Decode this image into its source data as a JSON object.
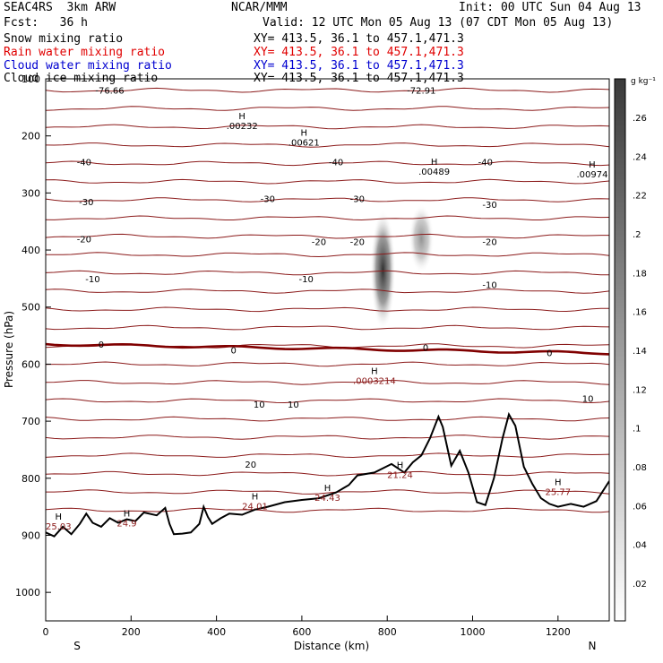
{
  "header": {
    "model": "SEAC4RS  3km ARW",
    "org": "NCAR/MMM",
    "init": "Init: 00 UTC Sun 04 Aug 13",
    "fcst": "Fcst:   36 h",
    "valid": "Valid: 12 UTC Mon 05 Aug 13 (07 CDT Mon 05 Aug 13)",
    "fields": [
      {
        "label": "Snow mixing ratio",
        "xy": "XY= 413.5, 36.1 to 457.1,471.3",
        "color": "#000000"
      },
      {
        "label": "Rain water mixing ratio",
        "xy": "XY= 413.5, 36.1 to 457.1,471.3",
        "color": "#e00000"
      },
      {
        "label": "Cloud water mixing ratio",
        "xy": "XY= 413.5, 36.1 to 457.1,471.3",
        "color": "#0000d0"
      },
      {
        "label": "Cloud ice mixing ratio",
        "xy": "XY= 413.5, 36.1 to 457.1,471.3",
        "color": "#000000"
      }
    ]
  },
  "colors": {
    "temperature": "#8b1a1a",
    "terrain": "#000000",
    "zero_line": "#800000"
  },
  "chart_data": {
    "type": "contour cross-section",
    "xlabel": "Distance (km)",
    "ylabel": "Pressure (hPa)",
    "xlim": [
      0,
      1320
    ],
    "ylim": [
      1050,
      100
    ],
    "x_ticks": [
      "0",
      "200",
      "400",
      "600",
      "800",
      "1000",
      "1200"
    ],
    "y_ticks": [
      "100",
      "200",
      "300",
      "400",
      "500",
      "600",
      "700",
      "800",
      "900",
      "1000"
    ],
    "direction_labels": [
      "S",
      "N"
    ],
    "colorbar": {
      "unit": "g kg⁻¹",
      "ticks": [
        ".02",
        ".04",
        ".06",
        ".08",
        ".1",
        ".12",
        ".14",
        ".16",
        ".18",
        ".2",
        ".22",
        ".24",
        ".26"
      ]
    },
    "isotherms": [
      {
        "label": "-76.66",
        "x": 150,
        "p": 120
      },
      {
        "label": "-72.91",
        "x": 880,
        "p": 120
      },
      {
        "label": "-40",
        "x": 90,
        "p": 245
      },
      {
        "label": "-40",
        "x": 680,
        "p": 245
      },
      {
        "label": "-40",
        "x": 1030,
        "p": 245
      },
      {
        "label": "-30",
        "x": 95,
        "p": 315
      },
      {
        "label": "-30",
        "x": 520,
        "p": 310
      },
      {
        "label": "-30",
        "x": 730,
        "p": 310
      },
      {
        "label": "-30",
        "x": 1040,
        "p": 320
      },
      {
        "label": "-20",
        "x": 90,
        "p": 380
      },
      {
        "label": "-20",
        "x": 640,
        "p": 385
      },
      {
        "label": "-20",
        "x": 730,
        "p": 385
      },
      {
        "label": "-20",
        "x": 1040,
        "p": 385
      },
      {
        "label": "-10",
        "x": 110,
        "p": 450
      },
      {
        "label": "-10",
        "x": 610,
        "p": 450
      },
      {
        "label": "-10",
        "x": 1040,
        "p": 460
      },
      {
        "label": "0",
        "x": 130,
        "p": 565
      },
      {
        "label": "0",
        "x": 440,
        "p": 575
      },
      {
        "label": "0",
        "x": 890,
        "p": 570
      },
      {
        "label": "0",
        "x": 1180,
        "p": 580
      },
      {
        "label": "10",
        "x": 500,
        "p": 670
      },
      {
        "label": "10",
        "x": 580,
        "p": 670
      },
      {
        "label": "10",
        "x": 1270,
        "p": 660
      },
      {
        "label": "20",
        "x": 480,
        "p": 775
      }
    ],
    "maxima": [
      {
        "label": ".00232",
        "x": 460,
        "p": 183
      },
      {
        "label": ".00621",
        "x": 605,
        "p": 212
      },
      {
        "label": ".00489",
        "x": 910,
        "p": 263
      },
      {
        "label": ".00974",
        "x": 1280,
        "p": 268
      },
      {
        "label": ".0003214",
        "x": 770,
        "p": 630
      },
      {
        "label": "21.24",
        "x": 830,
        "p": 795
      },
      {
        "label": "25.77",
        "x": 1200,
        "p": 825
      },
      {
        "label": "24.01",
        "x": 490,
        "p": 850
      },
      {
        "label": "24.43",
        "x": 660,
        "p": 835
      },
      {
        "label": "24.9",
        "x": 190,
        "p": 880
      },
      {
        "label": "25.03",
        "x": 30,
        "p": 885
      }
    ],
    "terrain_profile": [
      [
        0,
        895
      ],
      [
        20,
        902
      ],
      [
        40,
        885
      ],
      [
        60,
        898
      ],
      [
        80,
        880
      ],
      [
        95,
        862
      ],
      [
        110,
        878
      ],
      [
        130,
        885
      ],
      [
        150,
        870
      ],
      [
        170,
        878
      ],
      [
        190,
        872
      ],
      [
        210,
        875
      ],
      [
        230,
        860
      ],
      [
        260,
        865
      ],
      [
        280,
        852
      ],
      [
        290,
        880
      ],
      [
        300,
        898
      ],
      [
        320,
        897
      ],
      [
        340,
        895
      ],
      [
        360,
        880
      ],
      [
        370,
        850
      ],
      [
        380,
        868
      ],
      [
        390,
        880
      ],
      [
        410,
        870
      ],
      [
        430,
        862
      ],
      [
        460,
        864
      ],
      [
        490,
        855
      ],
      [
        520,
        850
      ],
      [
        560,
        842
      ],
      [
        600,
        838
      ],
      [
        640,
        835
      ],
      [
        680,
        825
      ],
      [
        710,
        812
      ],
      [
        730,
        795
      ],
      [
        770,
        790
      ],
      [
        810,
        775
      ],
      [
        840,
        790
      ],
      [
        860,
        772
      ],
      [
        880,
        760
      ],
      [
        900,
        730
      ],
      [
        920,
        692
      ],
      [
        930,
        710
      ],
      [
        950,
        778
      ],
      [
        970,
        752
      ],
      [
        990,
        790
      ],
      [
        1010,
        842
      ],
      [
        1030,
        847
      ],
      [
        1050,
        800
      ],
      [
        1070,
        730
      ],
      [
        1085,
        688
      ],
      [
        1100,
        708
      ],
      [
        1120,
        780
      ],
      [
        1140,
        810
      ],
      [
        1160,
        835
      ],
      [
        1180,
        845
      ],
      [
        1200,
        850
      ],
      [
        1230,
        845
      ],
      [
        1260,
        850
      ],
      [
        1290,
        840
      ],
      [
        1320,
        805
      ]
    ],
    "snow_features": [
      {
        "x": 790,
        "p_top": 330,
        "p_bottom": 540,
        "max": 0.28
      },
      {
        "x": 880,
        "p_top": 320,
        "p_bottom": 440,
        "max": 0.09
      }
    ]
  }
}
